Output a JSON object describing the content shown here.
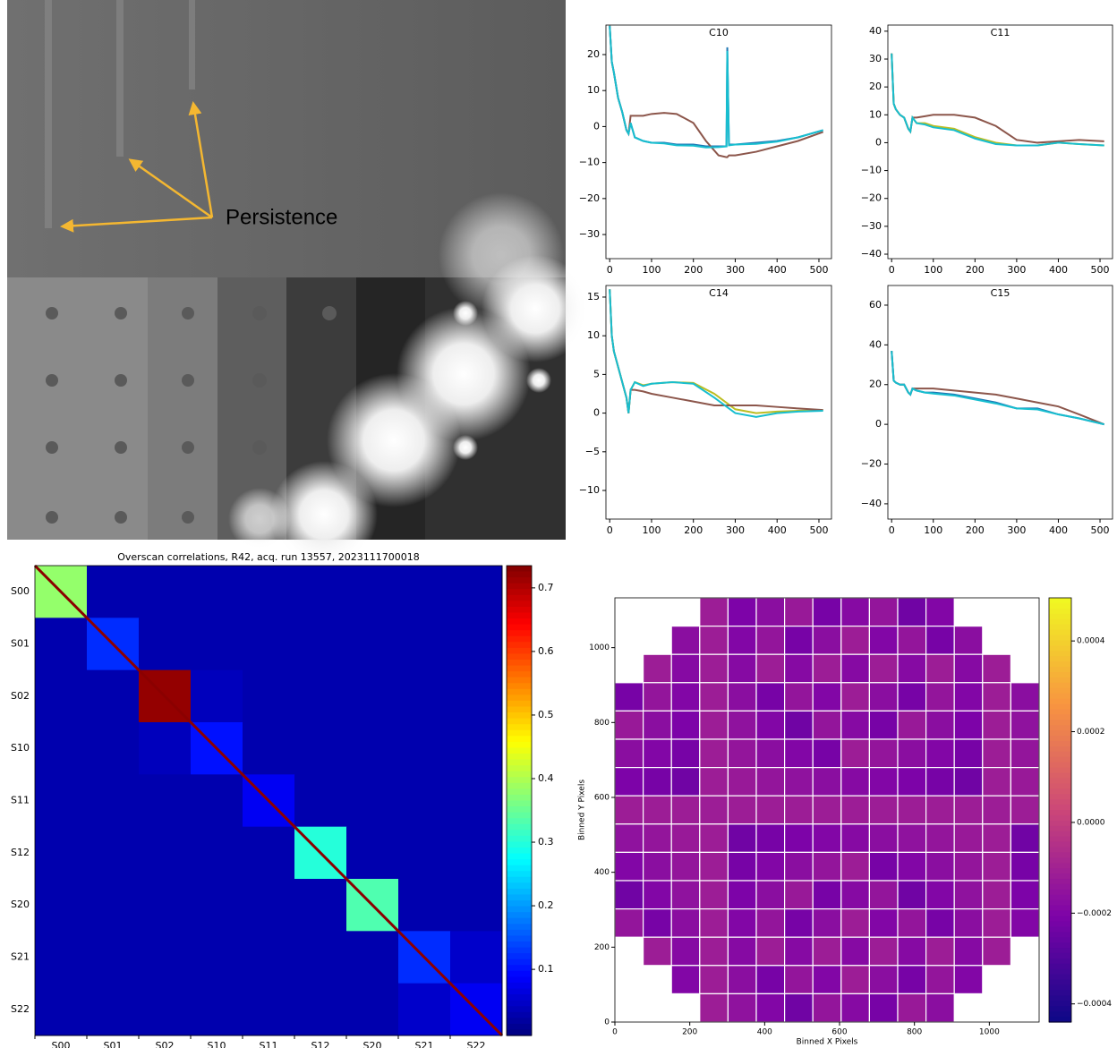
{
  "chart_data": [
    {
      "type": "image",
      "annotation": "Persistence"
    },
    {
      "type": "line",
      "title": "C10",
      "x": [
        0,
        5,
        10,
        20,
        30,
        40,
        45,
        50,
        60,
        80,
        100,
        130,
        160,
        200,
        230,
        260,
        279,
        281,
        285,
        300,
        350,
        400,
        450,
        510
      ],
      "series": [
        {
          "color": "#1f77b4",
          "values": [
            28,
            18,
            15,
            8,
            4,
            -1,
            -2,
            1,
            -3,
            -4,
            -4.5,
            -4.5,
            -5,
            -5,
            -5.5,
            -5.5,
            -5.5,
            22,
            -5,
            -5,
            -4.5,
            -4,
            -3,
            -1
          ]
        },
        {
          "color": "#8c564b",
          "values": [
            28,
            18,
            15,
            8,
            4,
            -1,
            -2,
            3,
            3,
            3,
            3.5,
            3.8,
            3.5,
            1,
            -4,
            -8,
            -8.5,
            -8.5,
            -8,
            -8,
            -7,
            -5.5,
            -4,
            -1.5
          ]
        },
        {
          "color": "#17becf",
          "values": [
            28,
            18,
            15,
            8,
            4,
            -1,
            -2,
            1,
            -3,
            -4,
            -4.5,
            -4.7,
            -5.2,
            -5.3,
            -5.8,
            -5.7,
            -5.5,
            21,
            -5.2,
            -5,
            -4.8,
            -4.2,
            -3,
            -1
          ]
        }
      ],
      "xlim": [
        -9,
        530
      ],
      "ylim": [
        -36.7,
        28.2
      ],
      "xticks": [
        0,
        100,
        200,
        300,
        400,
        500
      ],
      "yticks": [
        {
          "value": -30,
          "label": "−30"
        },
        {
          "value": -20,
          "label": "−20"
        },
        {
          "value": -10,
          "label": "−10"
        },
        0,
        10,
        20
      ]
    },
    {
      "type": "line",
      "title": "C11",
      "x": [
        0,
        5,
        10,
        20,
        30,
        40,
        45,
        50,
        60,
        80,
        100,
        150,
        200,
        250,
        300,
        350,
        400,
        450,
        510
      ],
      "series": [
        {
          "color": "#bcbd22",
          "values": [
            32,
            14,
            12,
            10,
            9,
            5,
            4,
            9,
            7,
            7,
            6,
            5,
            2,
            0,
            -1,
            -1,
            0,
            -0.5,
            -1
          ]
        },
        {
          "color": "#8c564b",
          "values": [
            32,
            14,
            12,
            10,
            9,
            5,
            4,
            9,
            9,
            9.5,
            10,
            10,
            9,
            6,
            1,
            0,
            0.5,
            1,
            0.5
          ]
        },
        {
          "color": "#17becf",
          "values": [
            32,
            14,
            12,
            10,
            9,
            5,
            4,
            9,
            7,
            6.5,
            5.5,
            4.5,
            1.5,
            -0.5,
            -1,
            -1,
            0,
            -0.5,
            -1
          ]
        }
      ],
      "xlim": [
        -9,
        530
      ],
      "ylim": [
        -41.6,
        42.2
      ],
      "xticks": [
        0,
        100,
        200,
        300,
        400,
        500
      ],
      "yticks": [
        {
          "value": -40,
          "label": "−40"
        },
        {
          "value": -30,
          "label": "−30"
        },
        {
          "value": -20,
          "label": "−20"
        },
        {
          "value": -10,
          "label": "−10"
        },
        0,
        10,
        20,
        30,
        40
      ]
    },
    {
      "type": "line",
      "title": "C14",
      "x": [
        0,
        5,
        10,
        20,
        30,
        40,
        45,
        50,
        60,
        80,
        100,
        150,
        200,
        250,
        300,
        350,
        400,
        450,
        510
      ],
      "series": [
        {
          "color": "#bcbd22",
          "values": [
            16,
            10,
            8,
            6,
            4,
            2,
            0,
            3,
            4,
            3.6,
            3.8,
            4,
            3.9,
            2.5,
            0.5,
            0,
            0.2,
            0.3,
            0.4
          ]
        },
        {
          "color": "#8c564b",
          "values": [
            16,
            10,
            8,
            6,
            4,
            2,
            0,
            3,
            3,
            2.8,
            2.5,
            2,
            1.5,
            1,
            1,
            1,
            0.8,
            0.6,
            0.4
          ]
        },
        {
          "color": "#17becf",
          "values": [
            16,
            10,
            8,
            6,
            4,
            2,
            0,
            3,
            4,
            3.5,
            3.8,
            4,
            3.8,
            2,
            0,
            -0.5,
            0,
            0.2,
            0.3
          ]
        }
      ],
      "xlim": [
        -9,
        530
      ],
      "ylim": [
        -13.7,
        16.5
      ],
      "xticks": [
        0,
        100,
        200,
        300,
        400,
        500
      ],
      "yticks": [
        {
          "value": -10,
          "label": "−10"
        },
        {
          "value": -5,
          "label": "−5"
        },
        0,
        5,
        10,
        15
      ]
    },
    {
      "type": "line",
      "title": "C15",
      "x": [
        0,
        5,
        10,
        20,
        30,
        40,
        45,
        50,
        60,
        80,
        100,
        150,
        200,
        250,
        300,
        350,
        400,
        450,
        510
      ],
      "series": [
        {
          "color": "#1f77b4",
          "values": [
            37,
            22,
            21,
            20,
            20,
            16,
            15,
            18,
            17,
            16,
            16,
            15,
            13,
            11,
            8,
            8,
            5,
            3,
            0
          ]
        },
        {
          "color": "#8c564b",
          "values": [
            37,
            22,
            21,
            20,
            20,
            16,
            15,
            18,
            18,
            18,
            18,
            17,
            16,
            15,
            13,
            11,
            9,
            5,
            0
          ]
        },
        {
          "color": "#17becf",
          "values": [
            37,
            22,
            21,
            20,
            20,
            16,
            15,
            18,
            17,
            16,
            15.5,
            14.5,
            12.5,
            10.5,
            8,
            7.5,
            5,
            3,
            0
          ]
        }
      ],
      "xlim": [
        -9,
        530
      ],
      "ylim": [
        -47.7,
        69.9
      ],
      "xticks": [
        0,
        100,
        200,
        300,
        400,
        500
      ],
      "yticks": [
        {
          "value": -40,
          "label": "−40"
        },
        {
          "value": -20,
          "label": "−20"
        },
        0,
        20,
        40,
        60
      ]
    },
    {
      "type": "heatmap",
      "title": "Overscan correlations, R42, acq. run 13557, 2023111700018",
      "categories": [
        "S00",
        "S01",
        "S02",
        "S10",
        "S11",
        "S12",
        "S20",
        "S21",
        "S22"
      ],
      "values": [
        [
          0.38,
          0.03,
          0.03,
          0.03,
          0.03,
          0.03,
          0.03,
          0.03,
          0.03
        ],
        [
          0.03,
          0.12,
          0.03,
          0.03,
          0.03,
          0.03,
          0.03,
          0.03,
          0.03
        ],
        [
          0.03,
          0.03,
          0.72,
          0.04,
          0.03,
          0.03,
          0.03,
          0.03,
          0.03
        ],
        [
          0.03,
          0.03,
          0.04,
          0.1,
          0.03,
          0.03,
          0.03,
          0.03,
          0.03
        ],
        [
          0.03,
          0.03,
          0.03,
          0.03,
          0.08,
          0.03,
          0.03,
          0.03,
          0.03
        ],
        [
          0.03,
          0.03,
          0.03,
          0.03,
          0.03,
          0.3,
          0.03,
          0.03,
          0.03
        ],
        [
          0.03,
          0.03,
          0.03,
          0.03,
          0.03,
          0.03,
          0.33,
          0.03,
          0.03
        ],
        [
          0.03,
          0.03,
          0.03,
          0.03,
          0.03,
          0.03,
          0.03,
          0.12,
          0.05
        ],
        [
          0.03,
          0.03,
          0.03,
          0.03,
          0.03,
          0.03,
          0.03,
          0.05,
          0.08
        ]
      ],
      "zlim": [
        -0.004,
        0.735
      ],
      "zticks": [
        0.1,
        0.2,
        0.3,
        0.4,
        0.5,
        0.6,
        0.7
      ]
    },
    {
      "type": "image",
      "xlabel": "Binned X Pixels",
      "ylabel": "Binned Y Pixels",
      "xlim": [
        0,
        1133
      ],
      "ylim": [
        0,
        1133
      ],
      "xticks": [
        0,
        200,
        400,
        600,
        800,
        1000
      ],
      "yticks": [
        0,
        200,
        400,
        600,
        800,
        1000
      ],
      "zlim": [
        -0.00044,
        0.000495
      ],
      "zticks": [
        {
          "value": -0.0004,
          "label": "−0.0004"
        },
        {
          "value": -0.0002,
          "label": "−0.0002"
        },
        {
          "value": 0,
          "label": "0.0000"
        },
        0.0002,
        0.0004
      ]
    }
  ]
}
